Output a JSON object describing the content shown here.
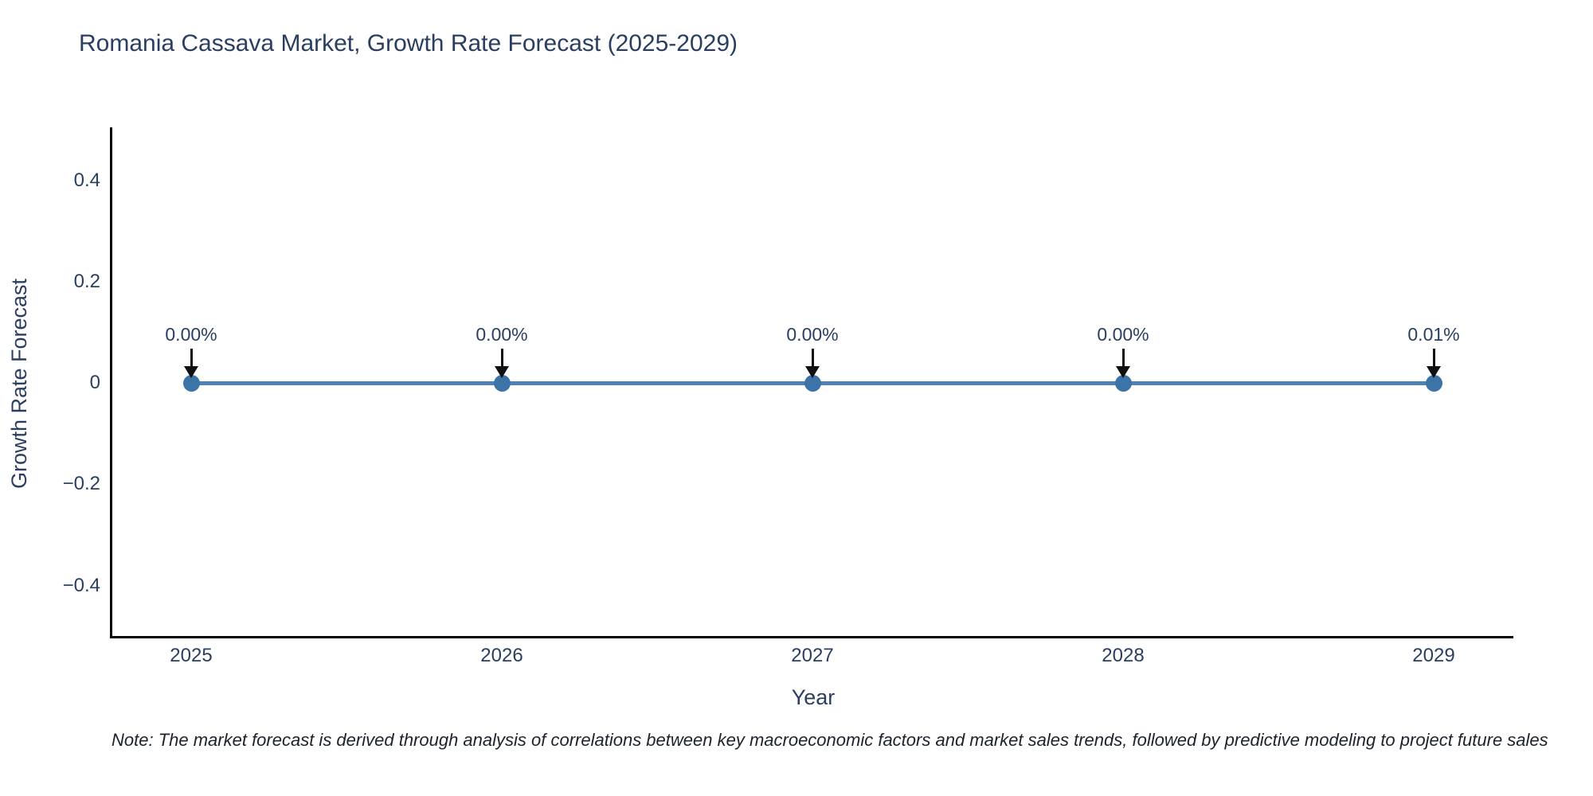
{
  "header": {
    "title": "Romania Cassava Market, Growth Rate Forecast (2025-2029)"
  },
  "chart_data": {
    "type": "line",
    "title": "Romania Cassava Market, Growth Rate Forecast (2025-2029)",
    "xlabel": "Year",
    "ylabel": "Growth Rate Forecast",
    "x": [
      2025,
      2026,
      2027,
      2028,
      2029
    ],
    "values_percent": [
      0.0,
      0.0,
      0.0,
      0.0,
      0.01
    ],
    "annotations": [
      "0.00%",
      "0.00%",
      "0.00%",
      "0.00%",
      "0.01%"
    ],
    "annotation_arrow": "down-arrow",
    "xtick_labels": [
      "2025",
      "2026",
      "2027",
      "2028",
      "2029"
    ],
    "ytick_labels": [
      "0.4",
      "0.2",
      "0",
      "−0.2",
      "−0.4"
    ],
    "ylim": [
      -0.5,
      0.5
    ],
    "grid": false,
    "legend_position": "none",
    "line_color": "#4e81b5",
    "marker_color": "#3d74a8",
    "axis_line_color": "#000000",
    "text_color": "#2a3f5f"
  },
  "note": {
    "text": "Note: The market forecast is derived through analysis of correlations between key macroeconomic factors and market sales trends, followed by predictive modeling to project future sales"
  }
}
